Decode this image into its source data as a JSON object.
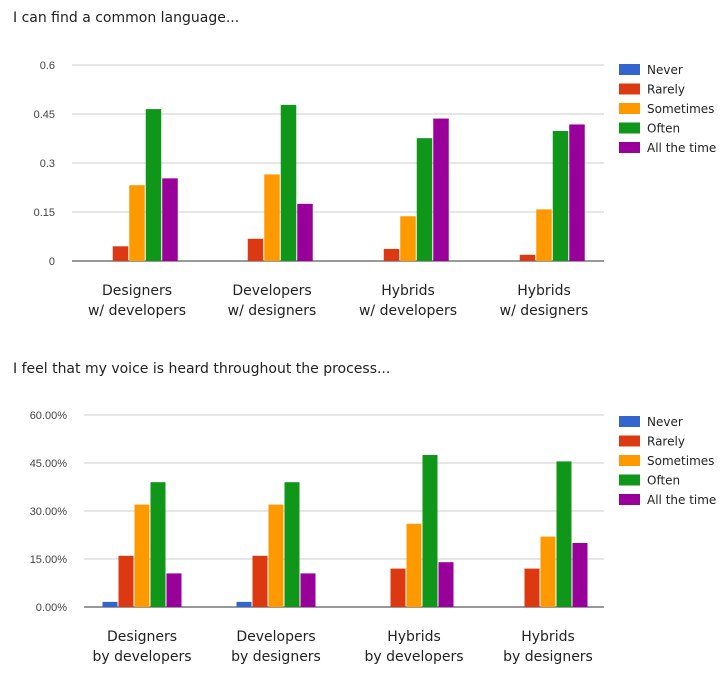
{
  "chart_data": [
    {
      "type": "bar",
      "title": "I can find a common language...",
      "categories": [
        [
          "Designers",
          "w/ developers"
        ],
        [
          "Developers",
          "w/ designers"
        ],
        [
          "Hybrids",
          "w/ developers"
        ],
        [
          "Hybrids",
          "w/ designers"
        ]
      ],
      "yticks": [
        "0",
        "0.15",
        "0.3",
        "0.45",
        "0.6"
      ],
      "ylim": [
        0,
        0.6
      ],
      "grid": true,
      "legend_position": "right",
      "series": [
        {
          "name": "Never",
          "color": "#3366cc",
          "values": [
            0,
            0,
            0,
            0
          ]
        },
        {
          "name": "Rarely",
          "color": "#dc3912",
          "values": [
            0.045,
            0.068,
            0.037,
            0.019
          ]
        },
        {
          "name": "Sometimes",
          "color": "#ff9900",
          "values": [
            0.232,
            0.265,
            0.137,
            0.158
          ]
        },
        {
          "name": "Often",
          "color": "#109618",
          "values": [
            0.465,
            0.478,
            0.376,
            0.398
          ]
        },
        {
          "name": "All the time",
          "color": "#990099",
          "values": [
            0.253,
            0.175,
            0.436,
            0.418
          ]
        }
      ]
    },
    {
      "type": "bar",
      "title": "I feel that my voice is heard throughout the process...",
      "categories": [
        [
          "Designers",
          "by developers"
        ],
        [
          "Developers",
          "by designers"
        ],
        [
          "Hybrids",
          "by developers"
        ],
        [
          "Hybrids",
          "by designers"
        ]
      ],
      "yticks": [
        "0.00%",
        "15.00%",
        "30.00%",
        "45.00%",
        "60.00%"
      ],
      "ylim": [
        0,
        0.6
      ],
      "grid": true,
      "legend_position": "right",
      "series": [
        {
          "name": "Never",
          "color": "#3366cc",
          "values": [
            0.016,
            0.016,
            0,
            0
          ]
        },
        {
          "name": "Rarely",
          "color": "#dc3912",
          "values": [
            0.16,
            0.16,
            0.12,
            0.12
          ]
        },
        {
          "name": "Sometimes",
          "color": "#ff9900",
          "values": [
            0.32,
            0.32,
            0.26,
            0.22
          ]
        },
        {
          "name": "Often",
          "color": "#109618",
          "values": [
            0.39,
            0.39,
            0.475,
            0.455
          ]
        },
        {
          "name": "All the time",
          "color": "#990099",
          "values": [
            0.105,
            0.105,
            0.14,
            0.2
          ]
        }
      ]
    }
  ]
}
